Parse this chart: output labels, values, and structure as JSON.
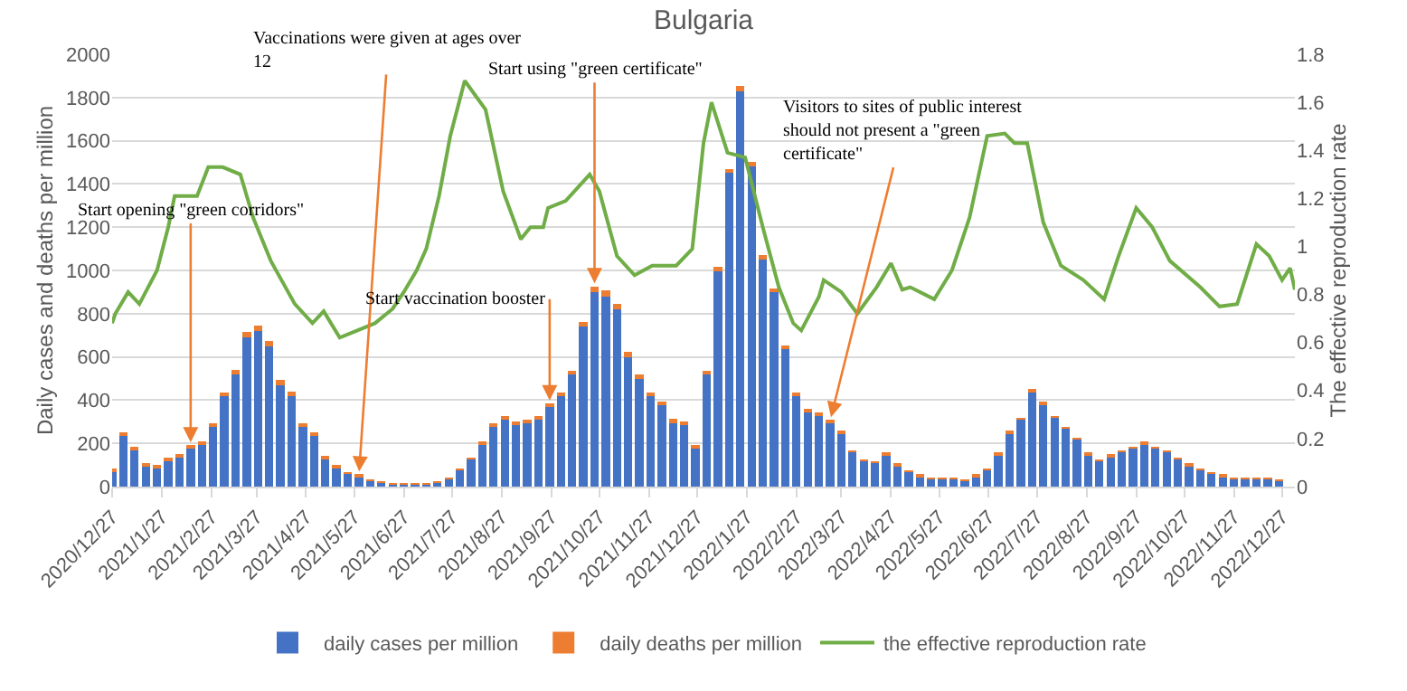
{
  "chart_data": {
    "type": "bar",
    "title": "Bulgaria",
    "ylabel": "Daily cases and deaths per million",
    "y2label": "The effective reproduction rate",
    "stacked": true,
    "grid": "y",
    "legend": "bottom",
    "x": [
      "2020-12-27",
      "2021-01-03",
      "2021-01-10",
      "2021-01-17",
      "2021-01-24",
      "2021-01-31",
      "2021-02-07",
      "2021-02-14",
      "2021-02-21",
      "2021-02-28",
      "2021-03-07",
      "2021-03-14",
      "2021-03-21",
      "2021-03-28",
      "2021-04-04",
      "2021-04-11",
      "2021-04-18",
      "2021-04-25",
      "2021-05-02",
      "2021-05-09",
      "2021-05-16",
      "2021-05-23",
      "2021-05-30",
      "2021-06-06",
      "2021-06-13",
      "2021-06-20",
      "2021-06-27",
      "2021-07-04",
      "2021-07-11",
      "2021-07-18",
      "2021-07-25",
      "2021-08-01",
      "2021-08-08",
      "2021-08-15",
      "2021-08-22",
      "2021-08-29",
      "2021-09-05",
      "2021-09-12",
      "2021-09-19",
      "2021-09-26",
      "2021-10-03",
      "2021-10-10",
      "2021-10-17",
      "2021-10-24",
      "2021-10-31",
      "2021-11-07",
      "2021-11-14",
      "2021-11-21",
      "2021-11-28",
      "2021-12-05",
      "2021-12-12",
      "2021-12-19",
      "2021-12-26",
      "2022-01-02",
      "2022-01-09",
      "2022-01-16",
      "2022-01-23",
      "2022-01-30",
      "2022-02-06",
      "2022-02-13",
      "2022-02-20",
      "2022-02-27",
      "2022-03-06",
      "2022-03-13",
      "2022-03-20",
      "2022-03-27",
      "2022-04-03",
      "2022-04-10",
      "2022-04-17",
      "2022-04-24",
      "2022-05-01",
      "2022-05-08",
      "2022-05-15",
      "2022-05-22",
      "2022-05-29",
      "2022-06-05",
      "2022-06-12",
      "2022-06-19",
      "2022-06-26",
      "2022-07-03",
      "2022-07-10",
      "2022-07-17",
      "2022-07-24",
      "2022-07-31",
      "2022-08-07",
      "2022-08-14",
      "2022-08-21",
      "2022-08-28",
      "2022-09-04",
      "2022-09-11",
      "2022-09-18",
      "2022-09-25",
      "2022-10-02",
      "2022-10-09",
      "2022-10-16",
      "2022-10-23",
      "2022-10-30",
      "2022-11-06",
      "2022-11-13",
      "2022-11-20",
      "2022-11-27",
      "2022-12-04",
      "2022-12-11",
      "2022-12-18",
      "2022-12-25"
    ],
    "series": [
      {
        "name": "daily cases per million",
        "color": "#4472c4",
        "values": [
          70,
          240,
          170,
          100,
          90,
          120,
          140,
          180,
          200,
          280,
          420,
          520,
          690,
          720,
          650,
          470,
          420,
          280,
          240,
          130,
          90,
          60,
          50,
          30,
          20,
          15,
          12,
          12,
          15,
          18,
          40,
          80,
          130,
          200,
          280,
          310,
          290,
          300,
          310,
          370,
          420,
          520,
          740,
          900,
          880,
          820,
          600,
          500,
          420,
          380,
          300,
          290,
          180,
          520,
          1000,
          1450,
          1830,
          1480,
          1050,
          900,
          640,
          420,
          350,
          330,
          300,
          250,
          160,
          120,
          110,
          150,
          100,
          70,
          50,
          40,
          35,
          35,
          30,
          50,
          80,
          150,
          250,
          310,
          440,
          380,
          320,
          270,
          220,
          150,
          120,
          140,
          160,
          180,
          200,
          180,
          160,
          130,
          100,
          80,
          60,
          50,
          40,
          35,
          40,
          35,
          30
        ]
      },
      {
        "name": "daily deaths per million",
        "color": "#ed7d31",
        "values": [
          8,
          12,
          10,
          8,
          6,
          6,
          6,
          8,
          10,
          12,
          16,
          20,
          24,
          26,
          25,
          22,
          18,
          14,
          12,
          8,
          6,
          4,
          3,
          2,
          2,
          1,
          1,
          1,
          1,
          1,
          1,
          2,
          3,
          5,
          8,
          10,
          10,
          10,
          11,
          12,
          14,
          16,
          20,
          24,
          26,
          26,
          22,
          20,
          16,
          14,
          12,
          10,
          8,
          12,
          16,
          20,
          22,
          22,
          20,
          18,
          14,
          10,
          8,
          6,
          5,
          5,
          4,
          3,
          3,
          3,
          3,
          2,
          2,
          1,
          1,
          1,
          1,
          1,
          1,
          2,
          2,
          3,
          4,
          5,
          6,
          6,
          5,
          4,
          3,
          3,
          3,
          3,
          4,
          4,
          4,
          3,
          3,
          2,
          2,
          2,
          1,
          1,
          1,
          1,
          1
        ]
      },
      {
        "name": "the effective reproduction rate",
        "color": "#70ad47",
        "type": "line",
        "axis": "y2",
        "x": [
          "2020-12-27",
          "2020-12-29",
          "2021-01-06",
          "2021-01-13",
          "2021-01-24",
          "2021-01-31",
          "2021-02-04",
          "2021-02-18",
          "2021-02-25",
          "2021-03-06",
          "2021-03-17",
          "2021-03-25",
          "2021-04-05",
          "2021-04-20",
          "2021-05-01",
          "2021-05-08",
          "2021-05-18",
          "2021-05-29",
          "2021-06-09",
          "2021-06-20",
          "2021-06-27",
          "2021-07-05",
          "2021-07-11",
          "2021-07-19",
          "2021-07-26",
          "2021-08-04",
          "2021-08-17",
          "2021-08-28",
          "2021-09-08",
          "2021-09-14",
          "2021-09-22",
          "2021-09-25",
          "2021-10-06",
          "2021-10-21",
          "2021-10-27",
          "2021-11-07",
          "2021-11-18",
          "2021-11-29",
          "2021-12-14",
          "2021-12-24",
          "2021-12-31",
          "2022-01-05",
          "2022-01-15",
          "2022-01-26",
          "2022-02-06",
          "2022-02-16",
          "2022-02-25",
          "2022-03-02",
          "2022-03-13",
          "2022-03-16",
          "2022-03-27",
          "2022-04-06",
          "2022-04-18",
          "2022-04-27",
          "2022-05-04",
          "2022-05-09",
          "2022-05-24",
          "2022-06-04",
          "2022-06-15",
          "2022-06-26",
          "2022-07-07",
          "2022-07-13",
          "2022-07-21",
          "2022-07-31",
          "2022-08-11",
          "2022-08-25",
          "2022-09-07",
          "2022-09-16",
          "2022-09-27",
          "2022-10-07",
          "2022-10-18",
          "2022-11-06",
          "2022-11-18",
          "2022-11-29",
          "2022-12-11",
          "2022-12-19",
          "2022-12-27",
          "2023-01-01",
          "2023-01-04"
        ],
        "values": [
          0.68,
          0.72,
          0.81,
          0.76,
          0.9,
          1.08,
          1.21,
          1.21,
          1.33,
          1.33,
          1.3,
          1.12,
          0.94,
          0.76,
          0.68,
          0.73,
          0.62,
          0.65,
          0.68,
          0.74,
          0.81,
          0.9,
          0.99,
          1.21,
          1.46,
          1.69,
          1.57,
          1.23,
          1.03,
          1.08,
          1.08,
          1.16,
          1.19,
          1.3,
          1.23,
          0.96,
          0.88,
          0.92,
          0.92,
          0.99,
          1.43,
          1.6,
          1.39,
          1.37,
          1.08,
          0.83,
          0.68,
          0.65,
          0.79,
          0.86,
          0.81,
          0.72,
          0.83,
          0.93,
          0.82,
          0.83,
          0.78,
          0.9,
          1.12,
          1.46,
          1.47,
          1.43,
          1.43,
          1.1,
          0.92,
          0.86,
          0.78,
          0.96,
          1.16,
          1.08,
          0.94,
          0.83,
          0.75,
          0.76,
          1.01,
          0.96,
          0.86,
          0.91,
          0.82
        ]
      }
    ],
    "xlim": [
      "2020-12-27",
      "2023-01-04"
    ],
    "xticks": [
      {
        "value": "2020-12-27",
        "label": "2020/12/27"
      },
      {
        "value": "2021-01-27",
        "label": "2021/1/27"
      },
      {
        "value": "2021-02-27",
        "label": "2021/2/27"
      },
      {
        "value": "2021-03-27",
        "label": "2021/3/27"
      },
      {
        "value": "2021-04-27",
        "label": "2021/4/27"
      },
      {
        "value": "2021-05-27",
        "label": "2021/5/27"
      },
      {
        "value": "2021-06-27",
        "label": "2021/6/27"
      },
      {
        "value": "2021-07-27",
        "label": "2021/7/27"
      },
      {
        "value": "2021-08-27",
        "label": "2021/8/27"
      },
      {
        "value": "2021-09-27",
        "label": "2021/9/27"
      },
      {
        "value": "2021-10-27",
        "label": "2021/10/27"
      },
      {
        "value": "2021-11-27",
        "label": "2021/11/27"
      },
      {
        "value": "2021-12-27",
        "label": "2021/12/27"
      },
      {
        "value": "2022-01-27",
        "label": "2022/1/27"
      },
      {
        "value": "2022-02-27",
        "label": "2022/2/27"
      },
      {
        "value": "2022-03-27",
        "label": "2022/3/27"
      },
      {
        "value": "2022-04-27",
        "label": "2022/4/27"
      },
      {
        "value": "2022-05-27",
        "label": "2022/5/27"
      },
      {
        "value": "2022-06-27",
        "label": "2022/6/27"
      },
      {
        "value": "2022-07-27",
        "label": "2022/7/27"
      },
      {
        "value": "2022-08-27",
        "label": "2022/8/27"
      },
      {
        "value": "2022-09-27",
        "label": "2022/9/27"
      },
      {
        "value": "2022-10-27",
        "label": "2022/10/27"
      },
      {
        "value": "2022-11-27",
        "label": "2022/11/27"
      },
      {
        "value": "2022-12-27",
        "label": "2022/12/27"
      }
    ],
    "ylim": [
      0,
      2000
    ],
    "yticks": [
      0,
      200,
      400,
      600,
      800,
      1000,
      1200,
      1400,
      1600,
      1800,
      2000
    ],
    "y2lim": [
      0,
      1.8
    ],
    "y2ticks": [
      0,
      {
        "value": 0.2,
        "label": "0.2"
      },
      {
        "value": 0.4,
        "label": "0.4"
      },
      {
        "value": 0.6,
        "label": "0.6"
      },
      {
        "value": 0.8,
        "label": "0.8"
      },
      1,
      {
        "value": 1.2,
        "label": "1.2"
      },
      {
        "value": 1.4,
        "label": "1.4"
      },
      {
        "value": 1.6,
        "label": "1.6"
      },
      {
        "value": 1.8,
        "label": "1.8"
      }
    ],
    "annotations": [
      {
        "text": "Start opening \"green corridors\"",
        "x": "2021-02-14",
        "y": 188
      },
      {
        "text": "Vaccinations were given at ages over 12",
        "x": "2021-05-30",
        "y": 53
      },
      {
        "text": "Start vaccination booster",
        "x": "2021-09-26",
        "y": 382
      },
      {
        "text": "Start using \"green certificate\"",
        "x": "2021-10-24",
        "y": 924
      },
      {
        "text": "Visitors to sites of public interest should not present a \"green certificate\"",
        "x": "2022-03-20",
        "y": 305
      }
    ]
  }
}
